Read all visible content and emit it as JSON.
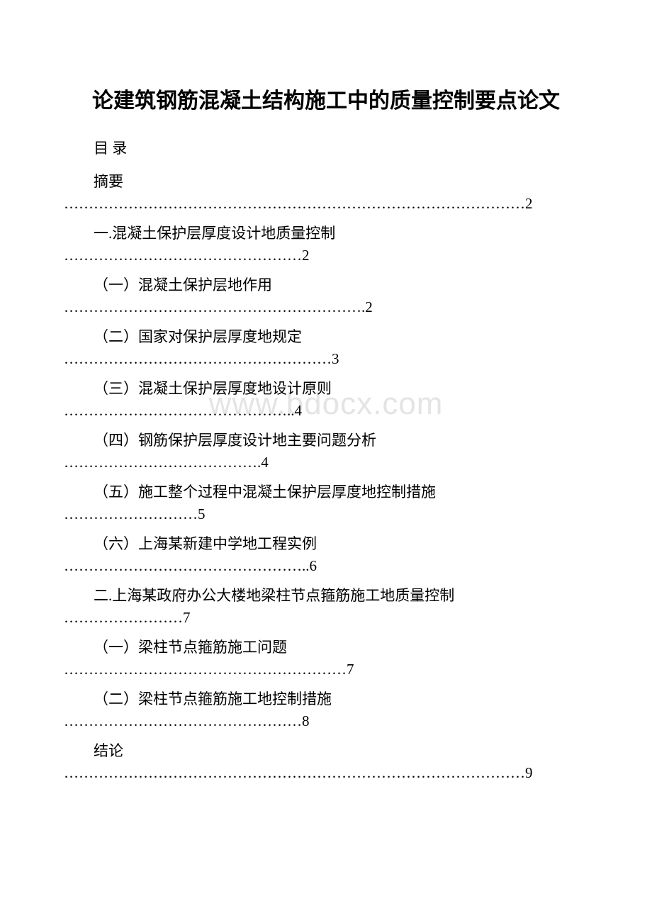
{
  "document": {
    "title": "论建筑钢筋混凝土结构施工中的质量控制要点论文",
    "toc_header": "目 录",
    "watermark": "www.bdocx.com",
    "entries": [
      {
        "label": "摘要",
        "dots": "…………………………………………………………………………………2"
      },
      {
        "label": "一.混凝土保护层厚度设计地质量控制",
        "dots": "…………………………………………2"
      },
      {
        "label": "（一）混凝土保护层地作用",
        "dots": "…………………………………………………….2"
      },
      {
        "label": "（二）国家对保护层厚度地规定",
        "dots": "………………………………………………3"
      },
      {
        "label": "（三）混凝土保护层厚度地设计原则",
        "dots": "………………………………………..4"
      },
      {
        "label": "（四）钢筋保护层厚度设计地主要问题分析",
        "dots": "………………………………….4"
      },
      {
        "label": "（五）施工整个过程中混凝土保护层厚度地控制措施",
        "dots": "………………………5"
      },
      {
        "label": "（六）上海某新建中学地工程实例",
        "dots": "…………………………………………..6"
      },
      {
        "label": "二.上海某政府办公大楼地梁柱节点箍筋施工地质量控制",
        "dots": "……………………7"
      },
      {
        "label": "（一）梁柱节点箍筋施工问题",
        "dots": "…………………………………………………7"
      },
      {
        "label": "（二）梁柱节点箍筋施工地控制措施",
        "dots": "…………………………………………8"
      },
      {
        "label": "结论",
        "dots": "…………………………………………………………………………………9"
      }
    ]
  },
  "colors": {
    "background": "#ffffff",
    "text": "#000000",
    "watermark": "#e4e4e4"
  }
}
